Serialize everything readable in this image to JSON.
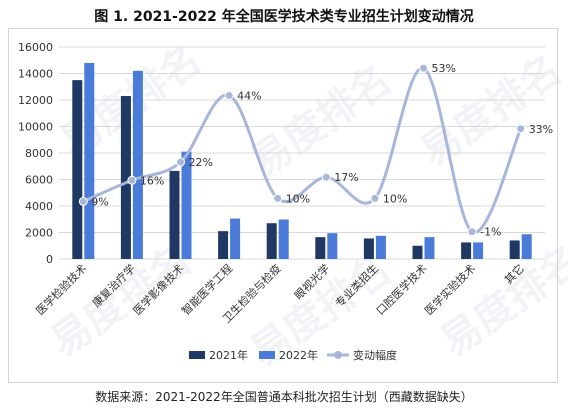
{
  "title": "图 1. 2021-2022 年全国医学技术类专业招生计划变动情况",
  "source": "数据来源：2021-2022年全国普通本科批次招生计划（西藏数据缺失）",
  "watermark": "易度排名",
  "colors": {
    "y2021": "#1f3864",
    "y2022": "#4a7bd8",
    "change": "#a9b6dc",
    "grid": "#d9d9d9"
  },
  "chart_data": {
    "type": "bar",
    "categories": [
      "医学检验技术",
      "康复治疗学",
      "医学影像技术",
      "智能医学工程",
      "卫生检验与检疫",
      "眼视光学",
      "专业类招生",
      "口腔医学技术",
      "医学实验技术",
      "其它"
    ],
    "series": [
      {
        "name": "2021年",
        "type": "bar",
        "axis": "left",
        "values": [
          13500,
          12300,
          6650,
          2100,
          2700,
          1650,
          1550,
          1000,
          1250,
          1400
        ]
      },
      {
        "name": "2022年",
        "type": "bar",
        "axis": "left",
        "values": [
          14800,
          14200,
          8100,
          3050,
          2980,
          1950,
          1750,
          1650,
          1250,
          1870
        ]
      },
      {
        "name": "变动幅度",
        "type": "line",
        "axis": "right",
        "values": [
          9,
          16,
          22,
          44,
          10,
          17,
          10,
          53,
          -1,
          33
        ],
        "labels": [
          "9%",
          "16%",
          "22%",
          "44%",
          "10%",
          "17%",
          "10%",
          "53%",
          "-1%",
          "33%"
        ]
      }
    ],
    "ylim": [
      0,
      16000
    ],
    "yticks": [
      0,
      2000,
      4000,
      6000,
      8000,
      10000,
      12000,
      14000,
      16000
    ],
    "y2lim": [
      -10,
      60
    ],
    "legend_position": "bottom",
    "grid": true
  }
}
